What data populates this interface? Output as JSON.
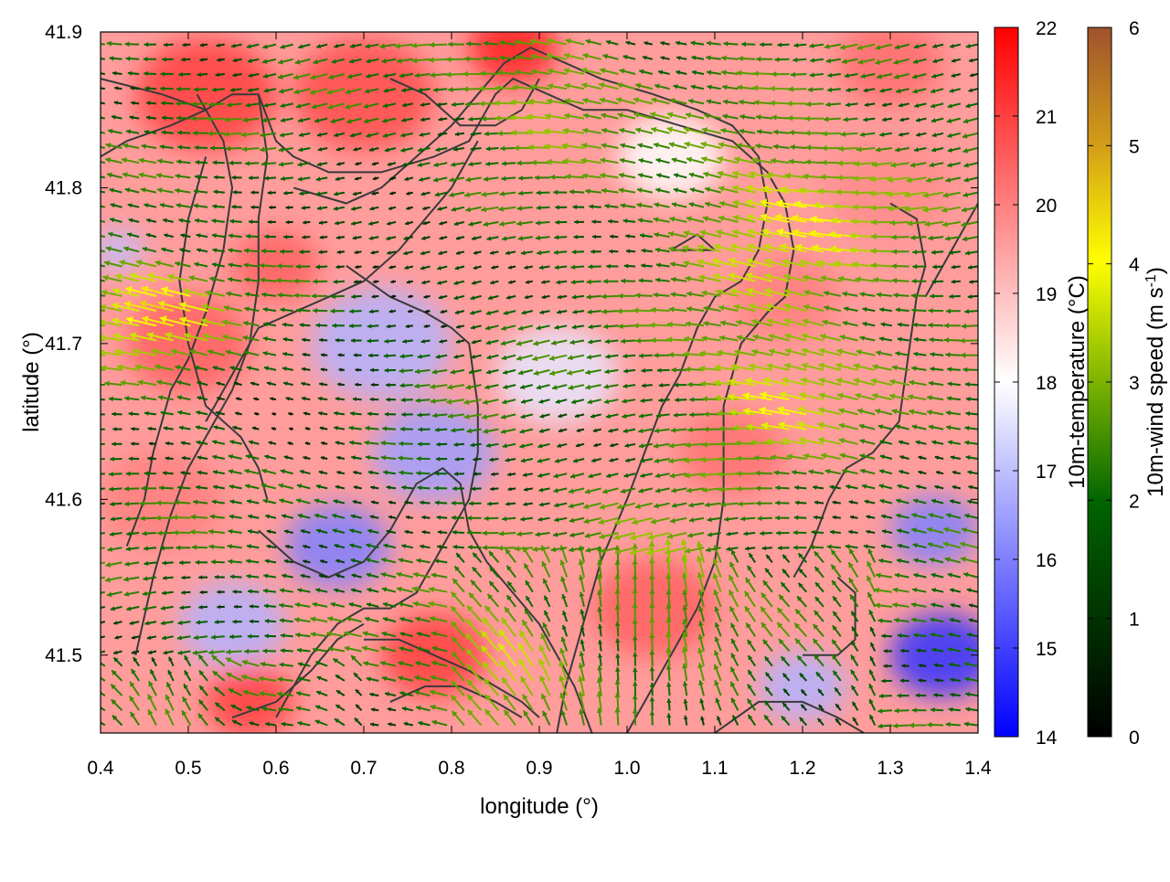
{
  "chart_data": {
    "type": "heatmap",
    "xlabel": "longitude (°)",
    "ylabel": "latitude (°)",
    "xlim": [
      0.4,
      1.4
    ],
    "ylim": [
      41.45,
      41.9
    ],
    "xticks": [
      "0.4",
      "0.5",
      "0.6",
      "0.7",
      "0.8",
      "0.9",
      "1.0",
      "1.1",
      "1.2",
      "1.3",
      "1.4"
    ],
    "yticks": [
      "41.5",
      "41.6",
      "41.7",
      "41.8",
      "41.9"
    ],
    "colorbars": [
      {
        "label": "10m-temperature (°C)",
        "range": [
          14,
          22
        ],
        "ticks": [
          "14",
          "15",
          "16",
          "17",
          "18",
          "19",
          "20",
          "21",
          "22"
        ],
        "colors": [
          "#0000ff",
          "#ffffff",
          "#ff0000"
        ]
      },
      {
        "label_main": "10m-wind speed (m s",
        "label_sup": "-1",
        "label_end": ")",
        "range": [
          0,
          6
        ],
        "ticks": [
          "0",
          "1",
          "2",
          "3",
          "4",
          "5",
          "6"
        ],
        "colors": [
          "#000000",
          "#006400",
          "#7cb300",
          "#ffff00",
          "#d4a017",
          "#a0522d"
        ]
      }
    ],
    "field_notes": "Background: 10m temperature field (approx. 16-21 °C). Arrows: 10m wind vectors coloured by speed, predominantly blowing toward the west/southwest, strongest (4-5 m/s) near the western and northeastern edges.",
    "contours": [
      [
        [
          0.4,
          41.87
        ],
        [
          0.47,
          41.86
        ],
        [
          0.52,
          41.85
        ],
        [
          0.55,
          41.86
        ],
        [
          0.58,
          41.86
        ],
        [
          0.6,
          41.83
        ],
        [
          0.62,
          41.82
        ],
        [
          0.66,
          41.81
        ],
        [
          0.72,
          41.81
        ],
        [
          0.78,
          41.82
        ],
        [
          0.82,
          41.83
        ],
        [
          0.85,
          41.86
        ],
        [
          0.87,
          41.87
        ],
        [
          0.91,
          41.86
        ],
        [
          0.95,
          41.85
        ],
        [
          1.0,
          41.85
        ],
        [
          1.06,
          41.84
        ],
        [
          1.12,
          41.83
        ],
        [
          1.16,
          41.81
        ],
        [
          1.18,
          41.79
        ],
        [
          1.19,
          41.76
        ],
        [
          1.18,
          41.73
        ],
        [
          1.16,
          41.72
        ],
        [
          1.13,
          41.7
        ],
        [
          1.11,
          41.66
        ],
        [
          1.11,
          41.6
        ],
        [
          1.1,
          41.56
        ],
        [
          1.08,
          41.53
        ],
        [
          1.05,
          41.5
        ],
        [
          1.02,
          41.47
        ],
        [
          1.0,
          41.45
        ]
      ],
      [
        [
          0.51,
          41.86
        ],
        [
          0.54,
          41.83
        ],
        [
          0.55,
          41.8
        ],
        [
          0.54,
          41.76
        ],
        [
          0.52,
          41.72
        ],
        [
          0.5,
          41.69
        ],
        [
          0.48,
          41.67
        ],
        [
          0.46,
          41.63
        ],
        [
          0.45,
          41.6
        ],
        [
          0.43,
          41.57
        ]
      ],
      [
        [
          0.4,
          41.82
        ],
        [
          0.43,
          41.83
        ],
        [
          0.48,
          41.84
        ],
        [
          0.52,
          41.85
        ]
      ],
      [
        [
          0.52,
          41.82
        ],
        [
          0.5,
          41.78
        ],
        [
          0.49,
          41.74
        ],
        [
          0.5,
          41.7
        ],
        [
          0.52,
          41.66
        ],
        [
          0.56,
          41.64
        ],
        [
          0.58,
          41.62
        ],
        [
          0.59,
          41.6
        ]
      ],
      [
        [
          0.58,
          41.86
        ],
        [
          0.59,
          41.82
        ],
        [
          0.58,
          41.78
        ],
        [
          0.58,
          41.74
        ],
        [
          0.57,
          41.7
        ],
        [
          0.55,
          41.67
        ],
        [
          0.53,
          41.65
        ],
        [
          0.5,
          41.62
        ],
        [
          0.48,
          41.59
        ],
        [
          0.46,
          41.55
        ],
        [
          0.44,
          41.5
        ]
      ],
      [
        [
          0.62,
          41.8
        ],
        [
          0.68,
          41.79
        ],
        [
          0.72,
          41.8
        ],
        [
          0.76,
          41.82
        ],
        [
          0.8,
          41.84
        ],
        [
          0.83,
          41.86
        ],
        [
          0.86,
          41.88
        ],
        [
          0.89,
          41.89
        ],
        [
          0.93,
          41.88
        ],
        [
          0.97,
          41.87
        ],
        [
          1.03,
          41.86
        ],
        [
          1.08,
          41.85
        ],
        [
          1.12,
          41.84
        ],
        [
          1.15,
          41.82
        ],
        [
          1.16,
          41.79
        ],
        [
          1.15,
          41.76
        ],
        [
          1.13,
          41.74
        ],
        [
          1.1,
          41.73
        ],
        [
          1.08,
          41.71
        ],
        [
          1.06,
          41.68
        ],
        [
          1.04,
          41.66
        ],
        [
          1.02,
          41.63
        ],
        [
          1.0,
          41.6
        ],
        [
          0.97,
          41.56
        ],
        [
          0.95,
          41.52
        ],
        [
          0.93,
          41.48
        ],
        [
          0.92,
          41.45
        ]
      ],
      [
        [
          0.68,
          41.75
        ],
        [
          0.73,
          41.73
        ],
        [
          0.77,
          41.72
        ],
        [
          0.8,
          41.71
        ],
        [
          0.82,
          41.7
        ],
        [
          0.83,
          41.66
        ],
        [
          0.83,
          41.63
        ],
        [
          0.82,
          41.6
        ],
        [
          0.8,
          41.58
        ],
        [
          0.78,
          41.56
        ],
        [
          0.76,
          41.54
        ],
        [
          0.73,
          41.53
        ],
        [
          0.7,
          41.53
        ],
        [
          0.67,
          41.52
        ],
        [
          0.64,
          41.5
        ],
        [
          0.62,
          41.48
        ],
        [
          0.6,
          41.46
        ]
      ],
      [
        [
          0.73,
          41.87
        ],
        [
          0.77,
          41.86
        ],
        [
          0.81,
          41.84
        ],
        [
          0.85,
          41.84
        ],
        [
          0.88,
          41.85
        ],
        [
          0.9,
          41.87
        ]
      ],
      [
        [
          0.52,
          41.65
        ],
        [
          0.55,
          41.68
        ],
        [
          0.58,
          41.71
        ],
        [
          0.62,
          41.72
        ],
        [
          0.66,
          41.73
        ],
        [
          0.7,
          41.74
        ],
        [
          0.74,
          41.76
        ],
        [
          0.77,
          41.78
        ],
        [
          0.8,
          41.8
        ],
        [
          0.83,
          41.83
        ]
      ],
      [
        [
          0.58,
          41.58
        ],
        [
          0.62,
          41.56
        ],
        [
          0.66,
          41.55
        ],
        [
          0.7,
          41.56
        ],
        [
          0.73,
          41.58
        ],
        [
          0.76,
          41.61
        ],
        [
          0.79,
          41.62
        ],
        [
          0.81,
          41.61
        ],
        [
          0.82,
          41.58
        ],
        [
          0.84,
          41.56
        ],
        [
          0.87,
          41.54
        ],
        [
          0.9,
          41.52
        ],
        [
          0.92,
          41.5
        ],
        [
          0.94,
          41.48
        ],
        [
          0.96,
          41.45
        ]
      ],
      [
        [
          0.7,
          41.51
        ],
        [
          0.74,
          41.51
        ],
        [
          0.78,
          41.5
        ],
        [
          0.82,
          41.49
        ],
        [
          0.85,
          41.48
        ],
        [
          0.88,
          41.47
        ],
        [
          0.9,
          41.46
        ]
      ],
      [
        [
          0.73,
          41.47
        ],
        [
          0.77,
          41.48
        ],
        [
          0.81,
          41.48
        ],
        [
          0.85,
          41.47
        ],
        [
          0.88,
          41.46
        ]
      ],
      [
        [
          1.05,
          41.76
        ],
        [
          1.08,
          41.77
        ],
        [
          1.1,
          41.76
        ],
        [
          1.08,
          41.76
        ],
        [
          1.05,
          41.76
        ]
      ],
      [
        [
          1.34,
          41.73
        ],
        [
          1.37,
          41.76
        ],
        [
          1.39,
          41.78
        ],
        [
          1.4,
          41.79
        ]
      ],
      [
        [
          1.33,
          41.73
        ],
        [
          1.32,
          41.69
        ],
        [
          1.31,
          41.65
        ],
        [
          1.28,
          41.63
        ],
        [
          1.25,
          41.62
        ],
        [
          1.23,
          41.6
        ],
        [
          1.21,
          41.57
        ],
        [
          1.19,
          41.55
        ]
      ],
      [
        [
          1.1,
          41.45
        ],
        [
          1.15,
          41.47
        ],
        [
          1.2,
          41.47
        ],
        [
          1.24,
          41.46
        ],
        [
          1.27,
          41.45
        ]
      ],
      [
        [
          1.2,
          41.5
        ],
        [
          1.24,
          41.5
        ],
        [
          1.26,
          41.51
        ],
        [
          1.26,
          41.54
        ],
        [
          1.24,
          41.55
        ]
      ],
      [
        [
          1.3,
          41.79
        ],
        [
          1.33,
          41.78
        ],
        [
          1.34,
          41.75
        ],
        [
          1.33,
          41.73
        ]
      ],
      [
        [
          0.55,
          41.46
        ],
        [
          0.6,
          41.47
        ],
        [
          0.64,
          41.49
        ],
        [
          0.67,
          41.51
        ],
        [
          0.7,
          41.52
        ]
      ]
    ],
    "blobs": [
      {
        "x": 0.52,
        "y": 41.86,
        "r": 0.08,
        "t": 21.0
      },
      {
        "x": 0.7,
        "y": 41.86,
        "r": 0.08,
        "t": 20.8
      },
      {
        "x": 0.87,
        "y": 41.89,
        "r": 0.05,
        "t": 21.5
      },
      {
        "x": 0.5,
        "y": 41.7,
        "r": 0.07,
        "t": 20.5
      },
      {
        "x": 0.6,
        "y": 41.75,
        "r": 0.05,
        "t": 20.5
      },
      {
        "x": 0.47,
        "y": 41.6,
        "r": 0.07,
        "t": 20.0
      },
      {
        "x": 0.78,
        "y": 41.5,
        "r": 0.06,
        "t": 21.0
      },
      {
        "x": 0.57,
        "y": 41.47,
        "r": 0.05,
        "t": 21.0
      },
      {
        "x": 1.03,
        "y": 41.53,
        "r": 0.07,
        "t": 20.5
      },
      {
        "x": 1.12,
        "y": 41.63,
        "r": 0.06,
        "t": 20.2
      },
      {
        "x": 1.18,
        "y": 41.73,
        "r": 0.06,
        "t": 20.0
      },
      {
        "x": 1.3,
        "y": 41.8,
        "r": 0.07,
        "t": 19.8
      },
      {
        "x": 1.3,
        "y": 41.88,
        "r": 0.06,
        "t": 20.3
      },
      {
        "x": 0.72,
        "y": 41.7,
        "r": 0.08,
        "t": 16.8
      },
      {
        "x": 0.78,
        "y": 41.63,
        "r": 0.07,
        "t": 16.5
      },
      {
        "x": 0.67,
        "y": 41.57,
        "r": 0.06,
        "t": 16.0
      },
      {
        "x": 0.55,
        "y": 41.52,
        "r": 0.06,
        "t": 16.8
      },
      {
        "x": 1.36,
        "y": 41.5,
        "r": 0.06,
        "t": 14.8
      },
      {
        "x": 1.35,
        "y": 41.58,
        "r": 0.05,
        "t": 16.0
      },
      {
        "x": 1.2,
        "y": 41.48,
        "r": 0.05,
        "t": 16.8
      },
      {
        "x": 0.92,
        "y": 41.68,
        "r": 0.07,
        "t": 17.6
      },
      {
        "x": 1.05,
        "y": 41.82,
        "r": 0.06,
        "t": 18.0
      },
      {
        "x": 0.42,
        "y": 41.76,
        "r": 0.03,
        "t": 17.0
      }
    ]
  }
}
